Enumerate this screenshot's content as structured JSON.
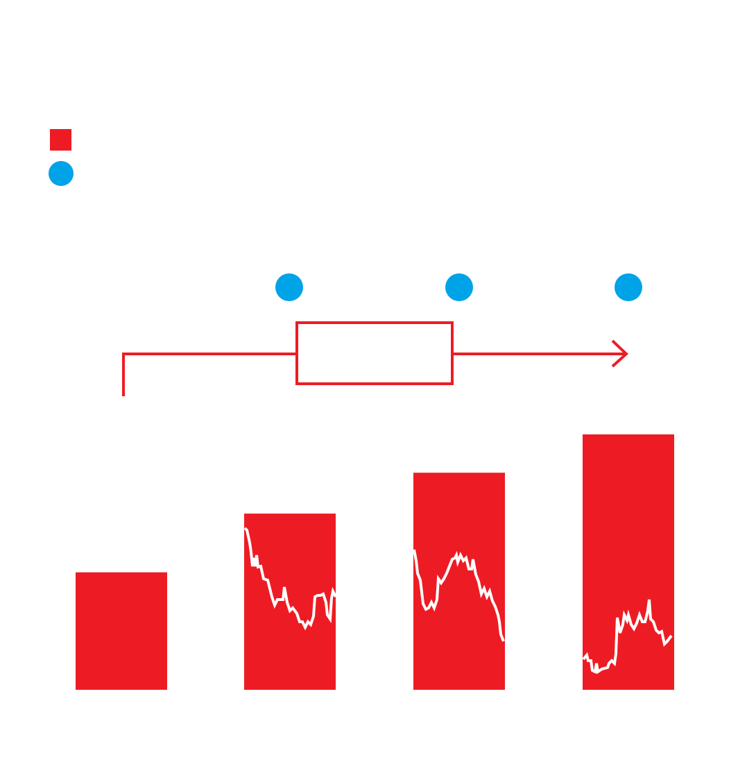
{
  "colors": {
    "red": "#ed1c24",
    "blue": "#00a2e8",
    "line": "#ffffff",
    "background": "#ffffff"
  },
  "legend": [
    {
      "icon": "red-square-icon"
    },
    {
      "icon": "blue-circle-icon"
    }
  ],
  "bars": [
    {
      "relative_height": 0.46,
      "has_trend_line": false
    },
    {
      "relative_height": 0.69,
      "has_trend_line": true
    },
    {
      "relative_height": 0.85,
      "has_trend_line": true
    },
    {
      "relative_height": 1.0,
      "has_trend_line": true
    }
  ],
  "markers": [
    {
      "icon": "blue-circle-icon"
    },
    {
      "icon": "blue-circle-icon"
    },
    {
      "icon": "blue-circle-icon"
    }
  ],
  "flow": {
    "icon": "arrow-right-icon"
  }
}
